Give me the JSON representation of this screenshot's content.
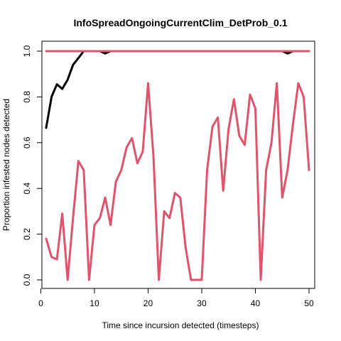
{
  "chart_data": {
    "type": "line",
    "title": "InfoSpreadOngoingCurrentClim_DetProb_0.1",
    "xlabel": "Time since incursion detected (timesteps)",
    "ylabel": "Proportion infested nodes detected",
    "xlim": [
      1,
      50
    ],
    "ylim": [
      0,
      1
    ],
    "x_ticks": [
      0,
      10,
      20,
      30,
      40,
      50
    ],
    "y_ticks": [
      0.0,
      0.2,
      0.4,
      0.6,
      0.8,
      1.0
    ],
    "x_tick_labels": [
      "0",
      "10",
      "20",
      "30",
      "40",
      "50"
    ],
    "y_tick_labels": [
      "0.0",
      "0.2",
      "0.4",
      "0.6",
      "0.8",
      "1.0"
    ],
    "grid": false,
    "series": [
      {
        "color": "#000000",
        "x": [
          1,
          2,
          3,
          4,
          5,
          6,
          7,
          8,
          9,
          10,
          11,
          12,
          13,
          14,
          15,
          16,
          17,
          18,
          19,
          20,
          21,
          22,
          23,
          24,
          25,
          26,
          27,
          28,
          29,
          30,
          31,
          32,
          33,
          34,
          35,
          36,
          37,
          38,
          39,
          40,
          41,
          42,
          43,
          44,
          45,
          46,
          47,
          48,
          49,
          50
        ],
        "y": [
          0.665,
          0.8,
          0.855,
          0.835,
          0.875,
          0.94,
          0.97,
          1.0,
          1.0,
          1.0,
          1.0,
          0.99,
          1.0,
          1.0,
          1.0,
          1.0,
          1.0,
          1.0,
          1.0,
          1.0,
          1.0,
          1.0,
          1.0,
          1.0,
          1.0,
          1.0,
          1.0,
          1.0,
          1.0,
          1.0,
          1.0,
          1.0,
          1.0,
          1.0,
          1.0,
          1.0,
          1.0,
          1.0,
          1.0,
          1.0,
          1.0,
          1.0,
          1.0,
          1.0,
          1.0,
          0.99,
          1.0,
          1.0,
          1.0,
          1.0
        ]
      },
      {
        "color": "#DF536B",
        "x": [
          1,
          2,
          3,
          4,
          5,
          6,
          7,
          8,
          9,
          10,
          11,
          12,
          13,
          14,
          15,
          16,
          17,
          18,
          19,
          20,
          21,
          22,
          23,
          24,
          25,
          26,
          27,
          28,
          29,
          30,
          31,
          32,
          33,
          34,
          35,
          36,
          37,
          38,
          39,
          40,
          41,
          42,
          43,
          44,
          45,
          46,
          47,
          48,
          49,
          50
        ],
        "y": [
          1.0,
          1.0,
          1.0,
          1.0,
          1.0,
          1.0,
          1.0,
          1.0,
          1.0,
          1.0,
          1.0,
          1.0,
          1.0,
          1.0,
          1.0,
          1.0,
          1.0,
          1.0,
          1.0,
          1.0,
          1.0,
          1.0,
          1.0,
          1.0,
          1.0,
          1.0,
          1.0,
          1.0,
          1.0,
          1.0,
          1.0,
          1.0,
          1.0,
          1.0,
          1.0,
          1.0,
          1.0,
          1.0,
          1.0,
          1.0,
          1.0,
          1.0,
          1.0,
          1.0,
          1.0,
          1.0,
          1.0,
          1.0,
          1.0,
          1.0
        ]
      },
      {
        "color": "#DF536B",
        "x": [
          1,
          2,
          3,
          4,
          5,
          6,
          7,
          8,
          9,
          10,
          11,
          12,
          13,
          14,
          15,
          16,
          17,
          18,
          19,
          20,
          21,
          22,
          23,
          24,
          25,
          26,
          27,
          28,
          29,
          30,
          31,
          32,
          33,
          34,
          35,
          36,
          37,
          38,
          39,
          40,
          41,
          42,
          43,
          44,
          45,
          46,
          47,
          48,
          49,
          50
        ],
        "y": [
          0.18,
          0.1,
          0.09,
          0.29,
          0.0,
          0.27,
          0.52,
          0.48,
          0.0,
          0.24,
          0.27,
          0.36,
          0.24,
          0.43,
          0.48,
          0.58,
          0.62,
          0.51,
          0.56,
          0.86,
          0.54,
          0.0,
          0.3,
          0.27,
          0.38,
          0.36,
          0.14,
          0.0,
          0.0,
          0.0,
          0.48,
          0.67,
          0.71,
          0.39,
          0.66,
          0.79,
          0.63,
          0.59,
          0.81,
          0.75,
          0.0,
          0.48,
          0.6,
          0.86,
          0.36,
          0.48,
          0.68,
          0.86,
          0.8,
          0.48
        ]
      }
    ]
  }
}
